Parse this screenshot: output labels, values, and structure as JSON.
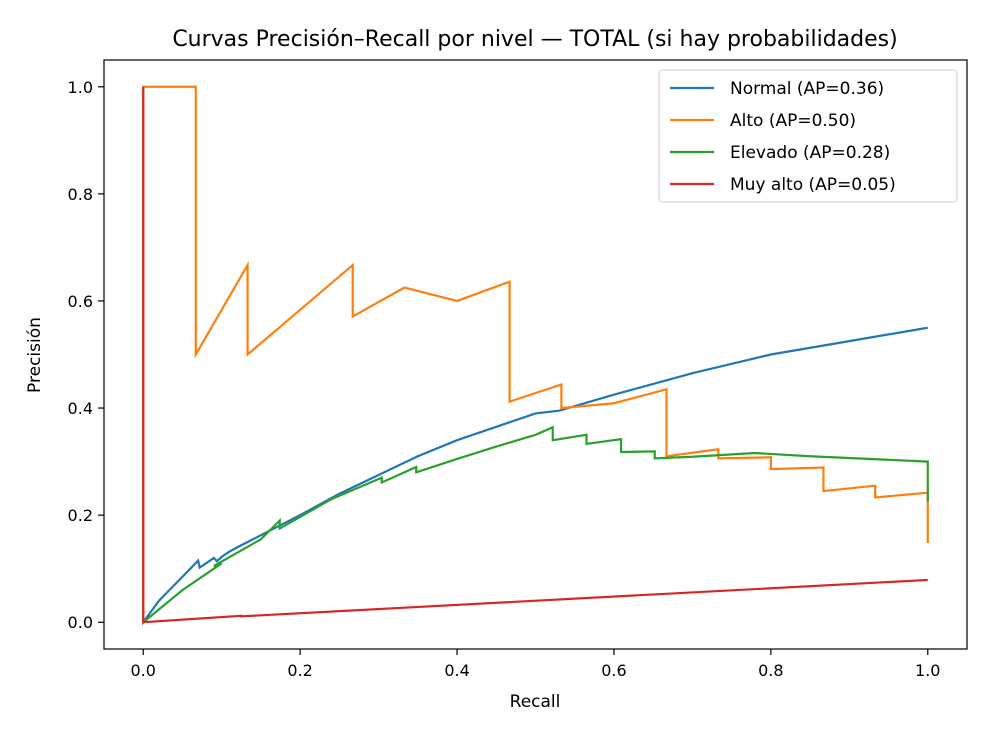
{
  "chart_data": {
    "type": "line",
    "title": "Curvas Precisión–Recall por nivel — TOTAL (si hay probabilidades)",
    "xlabel": "Recall",
    "ylabel": "Precisión",
    "xlim": [
      -0.05,
      1.05
    ],
    "ylim": [
      -0.05,
      1.05
    ],
    "xticks": [
      0.0,
      0.2,
      0.4,
      0.6,
      0.8,
      1.0
    ],
    "xtick_labels": [
      "0.0",
      "0.2",
      "0.4",
      "0.6",
      "0.8",
      "1.0"
    ],
    "yticks": [
      0.0,
      0.2,
      0.4,
      0.6,
      0.8,
      1.0
    ],
    "ytick_labels": [
      "0.0",
      "0.2",
      "0.4",
      "0.6",
      "0.8",
      "1.0"
    ],
    "grid": false,
    "legend_position": "top-right",
    "series": [
      {
        "name": "Normal (AP=0.36)",
        "color": "#1f77b4",
        "points": [
          [
            0.0,
            1.0
          ],
          [
            0.0,
            0.0
          ],
          [
            0.01,
            0.02
          ],
          [
            0.02,
            0.04
          ],
          [
            0.03,
            0.055
          ],
          [
            0.04,
            0.07
          ],
          [
            0.05,
            0.085
          ],
          [
            0.06,
            0.1
          ],
          [
            0.07,
            0.115
          ],
          [
            0.072,
            0.102
          ],
          [
            0.08,
            0.11
          ],
          [
            0.09,
            0.12
          ],
          [
            0.094,
            0.114
          ],
          [
            0.1,
            0.122
          ],
          [
            0.11,
            0.132
          ],
          [
            0.12,
            0.14
          ],
          [
            0.14,
            0.155
          ],
          [
            0.16,
            0.17
          ],
          [
            0.2,
            0.2
          ],
          [
            0.25,
            0.24
          ],
          [
            0.3,
            0.275
          ],
          [
            0.35,
            0.31
          ],
          [
            0.4,
            0.34
          ],
          [
            0.45,
            0.365
          ],
          [
            0.5,
            0.39
          ],
          [
            0.53,
            0.395
          ],
          [
            0.6,
            0.425
          ],
          [
            0.7,
            0.465
          ],
          [
            0.8,
            0.5
          ],
          [
            0.9,
            0.525
          ],
          [
            1.0,
            0.55
          ]
        ]
      },
      {
        "name": "Alto (AP=0.50)",
        "color": "#ff7f0e",
        "points": [
          [
            0.0,
            0.0
          ],
          [
            0.0,
            1.0
          ],
          [
            0.067,
            1.0
          ],
          [
            0.067,
            0.5
          ],
          [
            0.133,
            0.667
          ],
          [
            0.133,
            0.5
          ],
          [
            0.267,
            0.667
          ],
          [
            0.267,
            0.571
          ],
          [
            0.333,
            0.625
          ],
          [
            0.4,
            0.6
          ],
          [
            0.467,
            0.636
          ],
          [
            0.467,
            0.412
          ],
          [
            0.533,
            0.444
          ],
          [
            0.533,
            0.4
          ],
          [
            0.6,
            0.409
          ],
          [
            0.667,
            0.435
          ],
          [
            0.667,
            0.31
          ],
          [
            0.733,
            0.323
          ],
          [
            0.733,
            0.306
          ],
          [
            0.8,
            0.308
          ],
          [
            0.8,
            0.286
          ],
          [
            0.867,
            0.289
          ],
          [
            0.867,
            0.245
          ],
          [
            0.933,
            0.255
          ],
          [
            0.933,
            0.233
          ],
          [
            1.0,
            0.242
          ],
          [
            1.0,
            0.148
          ]
        ]
      },
      {
        "name": "Elevado (AP=0.28)",
        "color": "#2ca02c",
        "points": [
          [
            0.0,
            0.0
          ],
          [
            0.05,
            0.06
          ],
          [
            0.1,
            0.11
          ],
          [
            0.09,
            0.105
          ],
          [
            0.15,
            0.155
          ],
          [
            0.174,
            0.19
          ],
          [
            0.174,
            0.175
          ],
          [
            0.24,
            0.23
          ],
          [
            0.304,
            0.27
          ],
          [
            0.304,
            0.261
          ],
          [
            0.348,
            0.29
          ],
          [
            0.348,
            0.28
          ],
          [
            0.4,
            0.305
          ],
          [
            0.45,
            0.328
          ],
          [
            0.5,
            0.35
          ],
          [
            0.522,
            0.364
          ],
          [
            0.522,
            0.34
          ],
          [
            0.565,
            0.35
          ],
          [
            0.565,
            0.333
          ],
          [
            0.609,
            0.342
          ],
          [
            0.609,
            0.318
          ],
          [
            0.652,
            0.319
          ],
          [
            0.652,
            0.306
          ],
          [
            0.7,
            0.309
          ],
          [
            0.78,
            0.316
          ],
          [
            0.85,
            0.31
          ],
          [
            1.0,
            0.3
          ],
          [
            1.0,
            0.225
          ]
        ]
      },
      {
        "name": "Muy alto (AP=0.05)",
        "color": "#d62728",
        "points": [
          [
            0.0,
            1.0
          ],
          [
            0.0,
            0.0
          ],
          [
            0.125,
            0.012
          ],
          [
            0.125,
            0.011
          ],
          [
            1.0,
            0.079
          ]
        ]
      }
    ]
  }
}
